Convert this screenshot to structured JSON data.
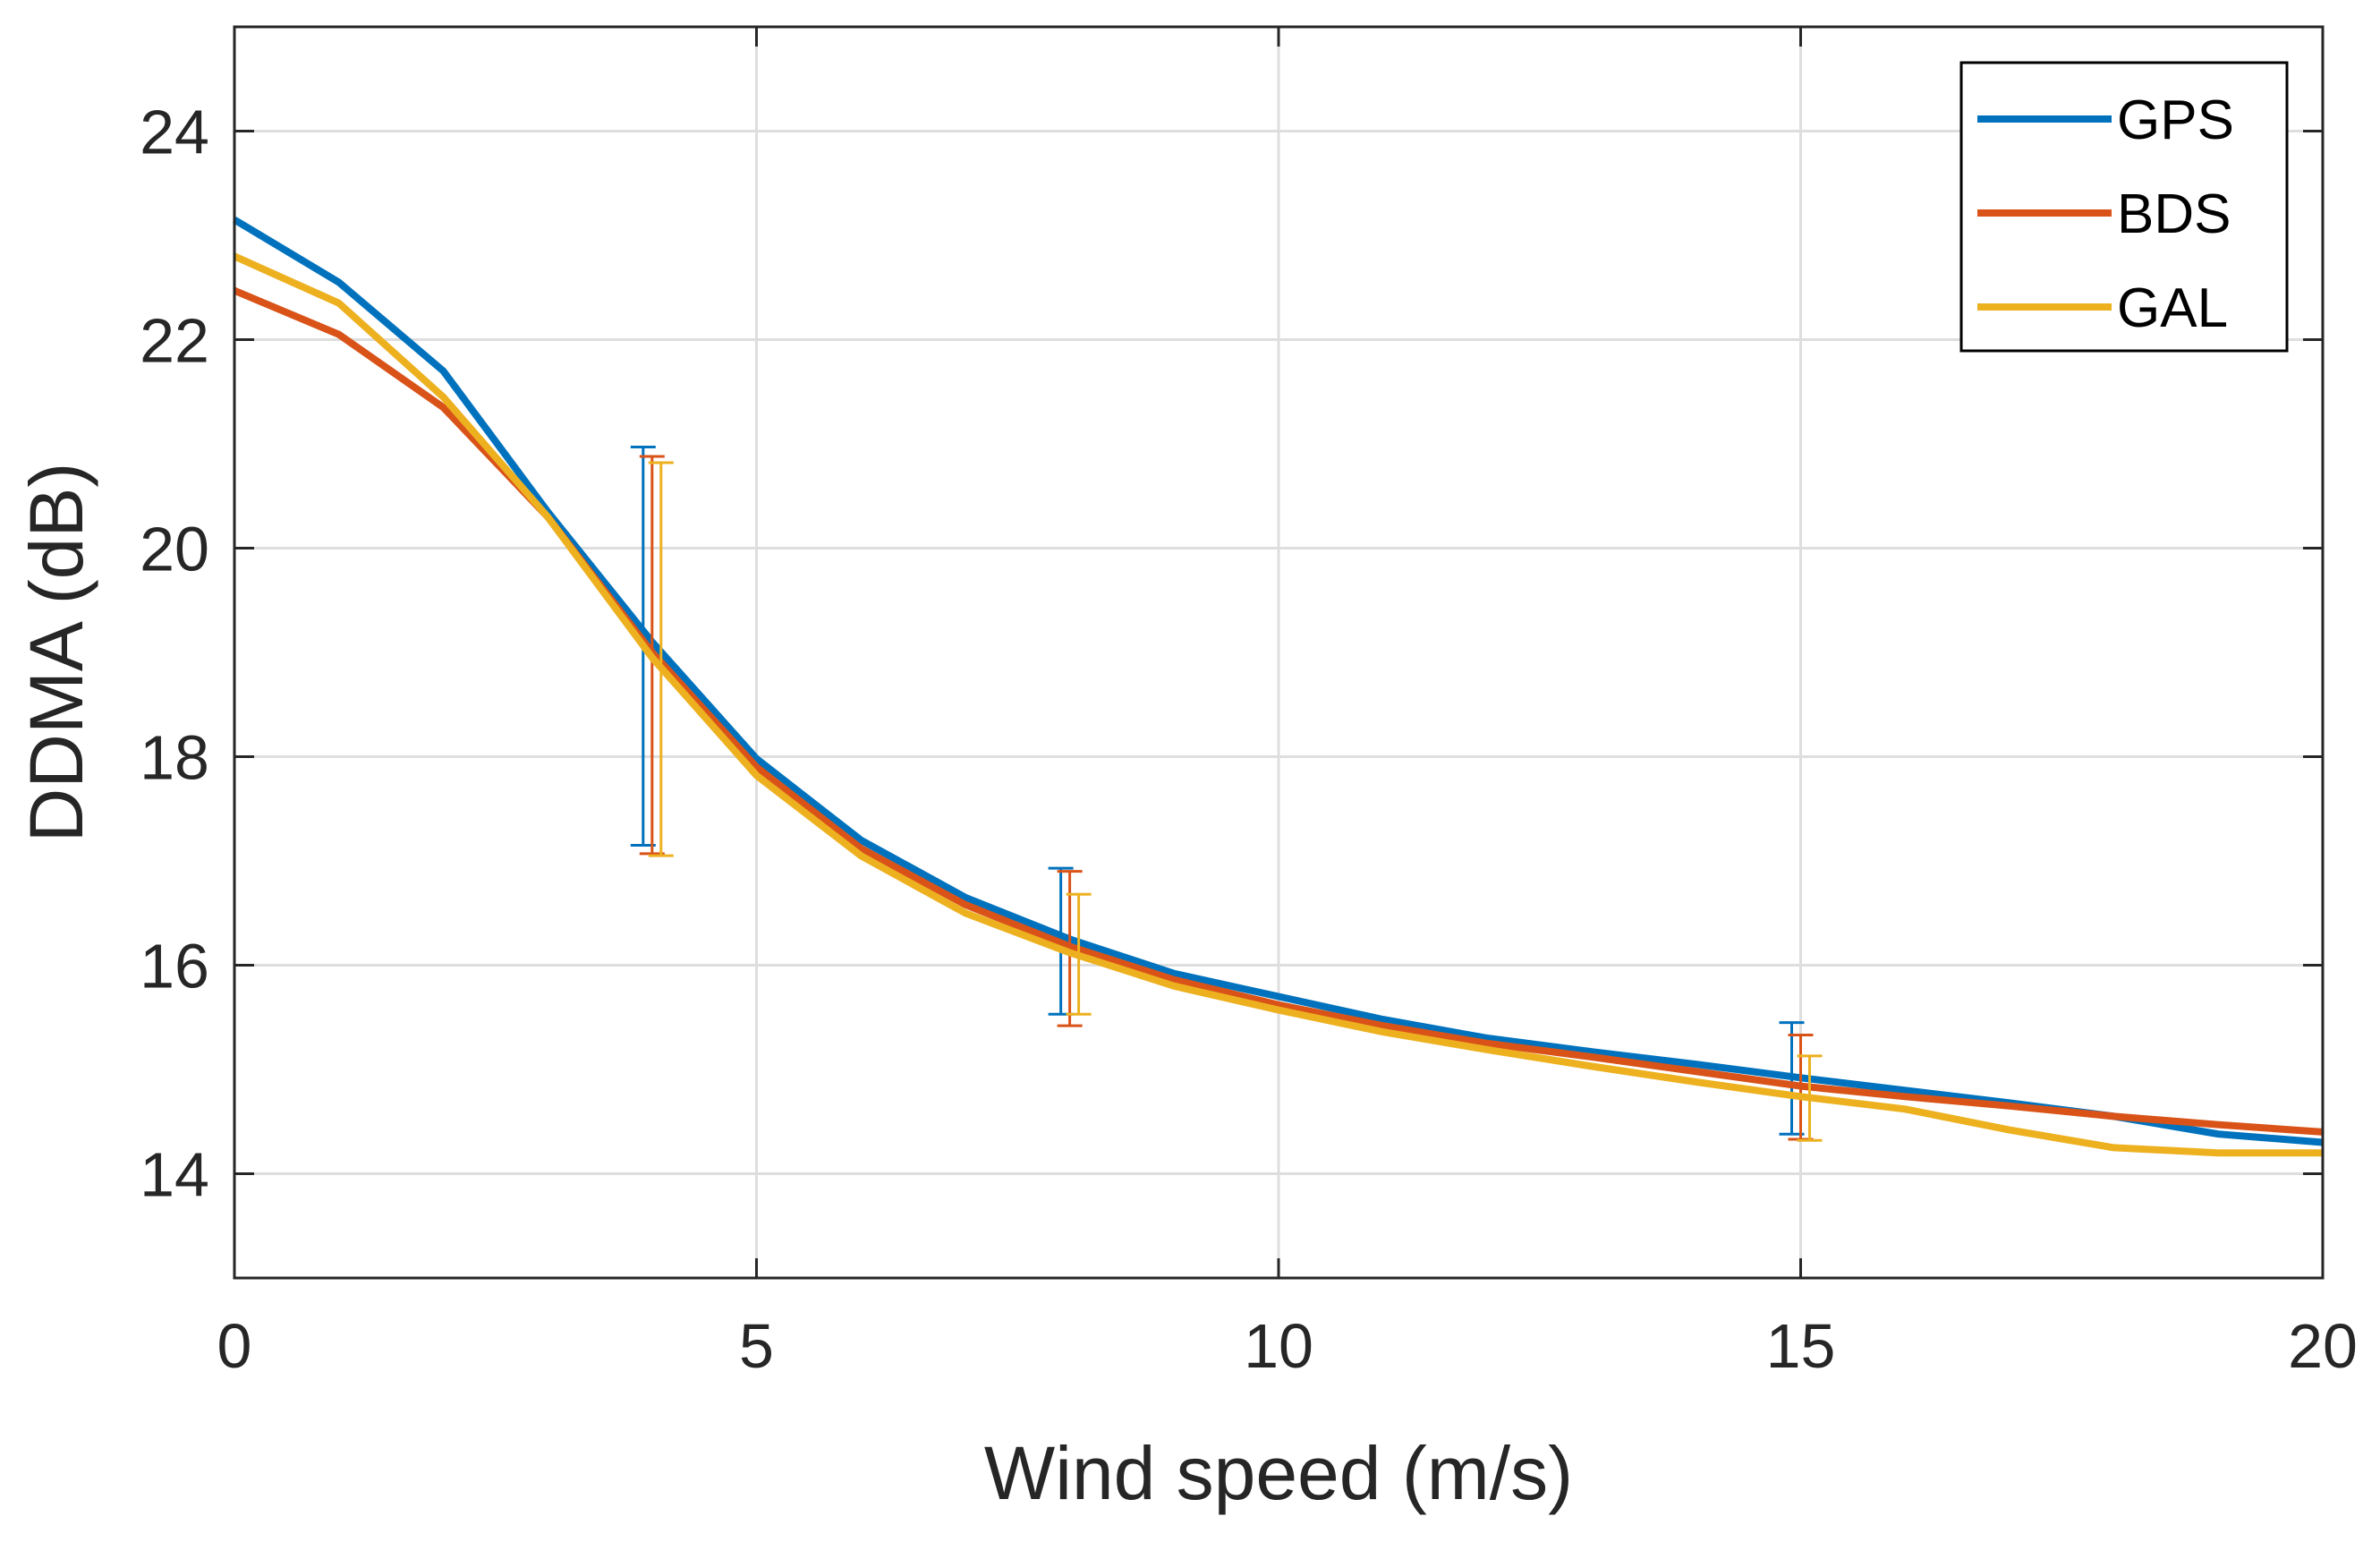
{
  "chart_data": {
    "type": "line",
    "title": "",
    "xlabel": "Wind speed (m/s)",
    "ylabel": "DDMA (dB)",
    "xlim": [
      0,
      20
    ],
    "ylim": [
      13,
      25
    ],
    "xticks": [
      0,
      5,
      10,
      15,
      20
    ],
    "yticks": [
      14,
      16,
      18,
      20,
      22,
      24
    ],
    "grid": true,
    "legend_position": "top-right",
    "x": [
      0,
      1,
      2,
      3,
      4,
      5,
      6,
      7,
      8,
      9,
      10,
      11,
      12,
      13,
      14,
      15,
      16,
      17,
      18,
      19,
      20
    ],
    "series": [
      {
        "name": "GPS",
        "color": "#0072BD",
        "values": [
          23.15,
          22.55,
          21.7,
          20.35,
          19.1,
          17.98,
          17.2,
          16.65,
          16.25,
          15.92,
          15.7,
          15.48,
          15.3,
          15.17,
          15.05,
          14.92,
          14.8,
          14.68,
          14.55,
          14.38,
          14.3
        ],
        "errorbars": [
          {
            "x": 4,
            "low": 17.15,
            "high": 20.97
          },
          {
            "x": 8,
            "low": 15.53,
            "high": 16.93
          },
          {
            "x": 15,
            "low": 14.38,
            "high": 15.45
          }
        ]
      },
      {
        "name": "BDS",
        "color": "#D95319",
        "values": [
          22.47,
          22.05,
          21.35,
          20.3,
          19.0,
          17.9,
          17.12,
          16.58,
          16.18,
          15.86,
          15.62,
          15.42,
          15.25,
          15.12,
          14.98,
          14.84,
          14.74,
          14.65,
          14.55,
          14.47,
          14.4
        ],
        "errorbars": [
          {
            "x": 4,
            "low": 17.07,
            "high": 20.88
          },
          {
            "x": 8,
            "low": 15.42,
            "high": 16.9
          },
          {
            "x": 15,
            "low": 14.33,
            "high": 15.33
          }
        ]
      },
      {
        "name": "GAL",
        "color": "#EDB120",
        "values": [
          22.8,
          22.35,
          21.45,
          20.3,
          18.95,
          17.82,
          17.05,
          16.5,
          16.12,
          15.8,
          15.57,
          15.36,
          15.19,
          15.03,
          14.88,
          14.74,
          14.62,
          14.42,
          14.25,
          14.2,
          14.2
        ],
        "errorbars": [
          {
            "x": 4,
            "low": 17.05,
            "high": 20.82
          },
          {
            "x": 8,
            "low": 15.53,
            "high": 16.68
          },
          {
            "x": 15,
            "low": 14.32,
            "high": 15.13
          }
        ]
      }
    ]
  }
}
